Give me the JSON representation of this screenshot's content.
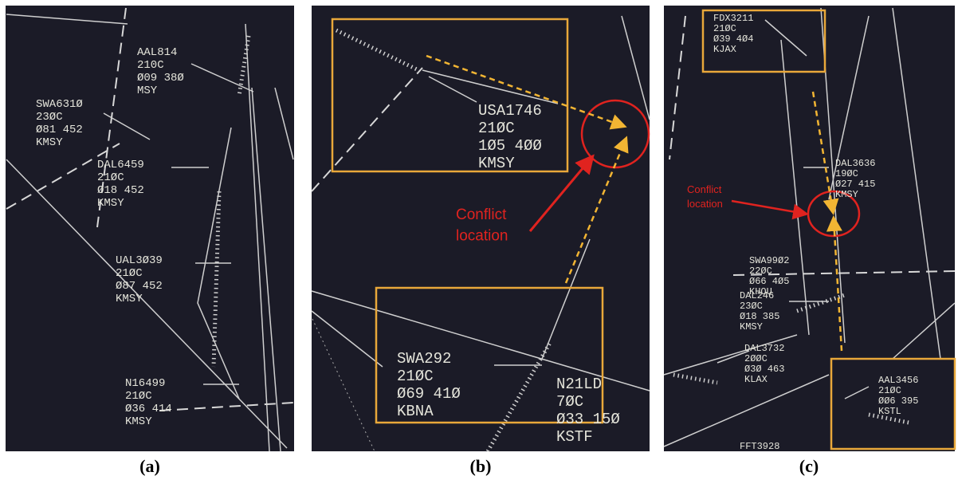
{
  "panels": [
    {
      "label": "(a)",
      "data_blocks": [
        {
          "lines": [
            "AAL814",
            "210C",
            "Ø09 38Ø",
            "MSY"
          ]
        },
        {
          "lines": [
            "SWA631Ø",
            "23ØC",
            "Ø81 452",
            "KMSY"
          ]
        },
        {
          "lines": [
            "DAL6459",
            "21ØC",
            "Ø18 452",
            "KMSY"
          ]
        },
        {
          "lines": [
            "UAL3Ø39",
            "21ØC",
            "Ø87 452",
            "KMSY"
          ]
        },
        {
          "lines": [
            "N16499",
            "21ØC",
            "Ø36 414",
            "KMSY"
          ]
        }
      ],
      "annotations": []
    },
    {
      "label": "(b)",
      "data_blocks": [
        {
          "lines": [
            "USA1746",
            "21ØC",
            "1Ø5 4ØØ",
            "KMSY"
          ]
        },
        {
          "lines": [
            "SWA292",
            "21ØC",
            "Ø69 41Ø",
            "KBNA"
          ]
        },
        {
          "lines": [
            "N21LD",
            "7ØC",
            "Ø33 15Ø",
            "KSTF"
          ]
        }
      ],
      "annotations": [
        {
          "lines": [
            "Conflict",
            "location"
          ]
        }
      ]
    },
    {
      "label": "(c)",
      "data_blocks": [
        {
          "lines": [
            "FDX3211",
            "21ØC",
            "Ø39 4Ø4",
            "KJAX"
          ]
        },
        {
          "lines": [
            "DAL3636",
            "19ØC",
            "Ø27 415",
            "KMSY"
          ]
        },
        {
          "lines": [
            "SWA99Ø2",
            "22ØC",
            "Ø66 4Ø5",
            "KHOU"
          ]
        },
        {
          "lines": [
            "DAL246",
            "23ØC",
            "Ø18 385",
            "KMSY"
          ]
        },
        {
          "lines": [
            "DAL3732",
            "2ØØC",
            "Ø3Ø 463",
            "KLAX"
          ]
        },
        {
          "lines": [
            "AAL3456",
            "21ØC",
            "ØØ6 395",
            "KSTL"
          ]
        },
        {
          "lines": [
            "FFT3928"
          ]
        }
      ],
      "annotations": [
        {
          "lines": [
            "Conflict",
            "location"
          ]
        }
      ]
    }
  ]
}
